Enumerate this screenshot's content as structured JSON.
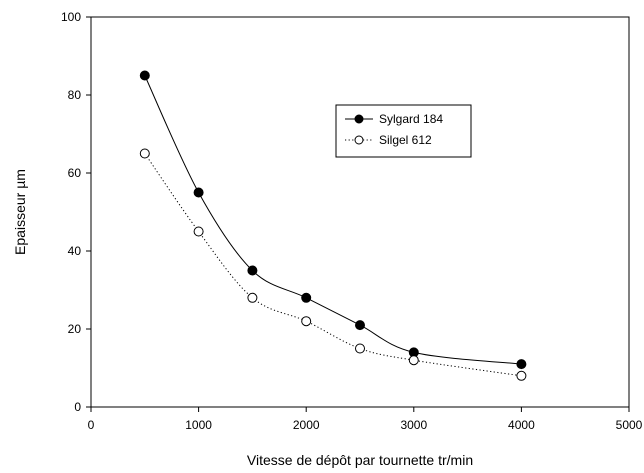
{
  "chart_data": {
    "type": "line",
    "title": "",
    "xlabel": "Vitesse de dépôt par tournette  tr/min",
    "ylabel": "Epaisseur µm",
    "xlim": [
      0,
      5000
    ],
    "ylim": [
      0,
      100
    ],
    "xticks": [
      0,
      1000,
      2000,
      3000,
      4000,
      5000
    ],
    "yticks": [
      0,
      20,
      40,
      60,
      80,
      100
    ],
    "grid": false,
    "legend_position": "upper-right",
    "series": [
      {
        "name": "Sylgard 184",
        "marker": "filled-circle",
        "line_style": "solid",
        "color": "#000000",
        "x": [
          500,
          1000,
          1500,
          2000,
          2500,
          3000,
          4000
        ],
        "y": [
          85,
          55,
          35,
          28,
          21,
          14,
          11
        ]
      },
      {
        "name": "Silgel 612",
        "marker": "open-circle",
        "line_style": "dotted",
        "color": "#000000",
        "x": [
          500,
          1000,
          1500,
          2000,
          2500,
          3000,
          4000
        ],
        "y": [
          65,
          45,
          28,
          22,
          15,
          12,
          8
        ]
      }
    ]
  }
}
